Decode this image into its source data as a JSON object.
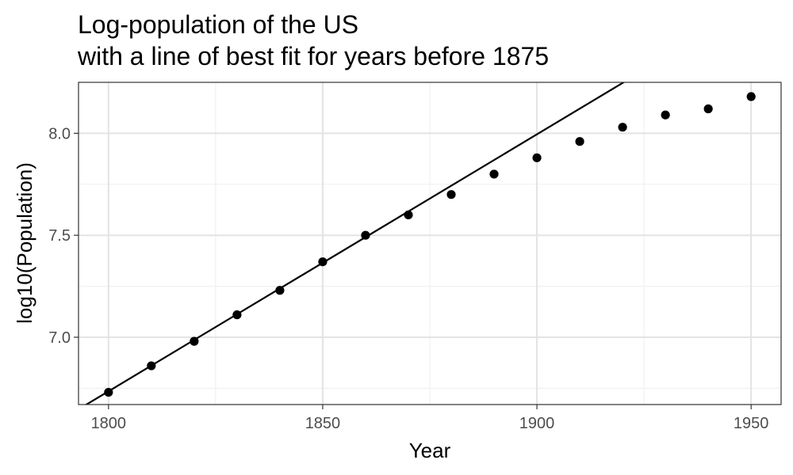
{
  "chart_data": {
    "type": "scatter",
    "title": "Log-population of the US",
    "subtitle": "with a line of best fit for years before 1875",
    "xlabel": "Year",
    "ylabel": "log10(Population)",
    "xlim": [
      1793,
      1957
    ],
    "ylim": [
      6.67,
      8.25
    ],
    "x_ticks": [
      1800,
      1850,
      1900,
      1950
    ],
    "x_tick_labels": [
      "1800",
      "1850",
      "1900",
      "1950"
    ],
    "y_ticks": [
      7.0,
      7.5,
      8.0
    ],
    "y_tick_labels": [
      "7.0",
      "7.5",
      "8.0"
    ],
    "x_minor_ticks": [
      1825,
      1875,
      1925
    ],
    "y_minor_ticks": [
      6.75,
      7.25,
      7.75
    ],
    "grid": true,
    "series": [
      {
        "x": [
          1800,
          1810,
          1820,
          1830,
          1840,
          1850,
          1860,
          1870,
          1880,
          1890,
          1900,
          1910,
          1920,
          1930,
          1940,
          1950
        ],
        "values": [
          6.73,
          6.86,
          6.98,
          7.11,
          7.23,
          7.37,
          7.5,
          7.6,
          7.7,
          7.8,
          7.88,
          7.96,
          8.03,
          8.09,
          8.12,
          8.18
        ],
        "color": "#000000"
      }
    ],
    "fit_line": {
      "slope": 0.0126,
      "intercept_at_1800": 6.735,
      "color": "#000000"
    }
  }
}
